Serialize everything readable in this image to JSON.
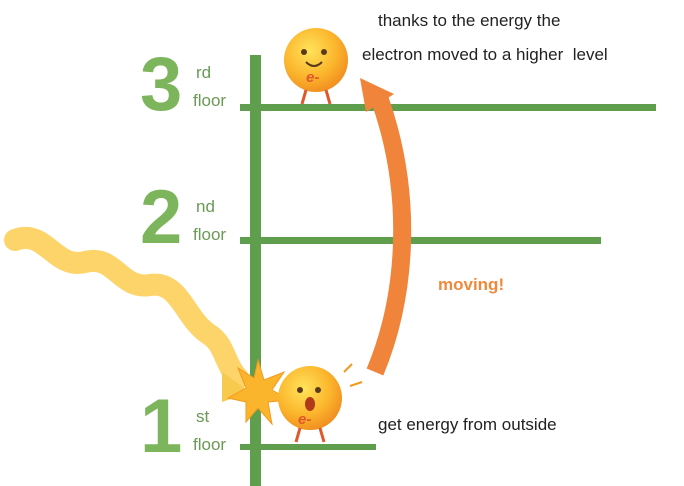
{
  "floors": [
    {
      "number": "3",
      "suffix": "rd",
      "word": "floor"
    },
    {
      "number": "2",
      "suffix": "nd",
      "word": "floor"
    },
    {
      "number": "1",
      "suffix": "st",
      "word": "floor"
    }
  ],
  "electron_label": "e-",
  "labels": {
    "top_note": [
      "thanks to the energy the",
      "electron moved to a higher  level"
    ],
    "moving": "moving!",
    "bottom_note": "get energy from outside"
  }
}
